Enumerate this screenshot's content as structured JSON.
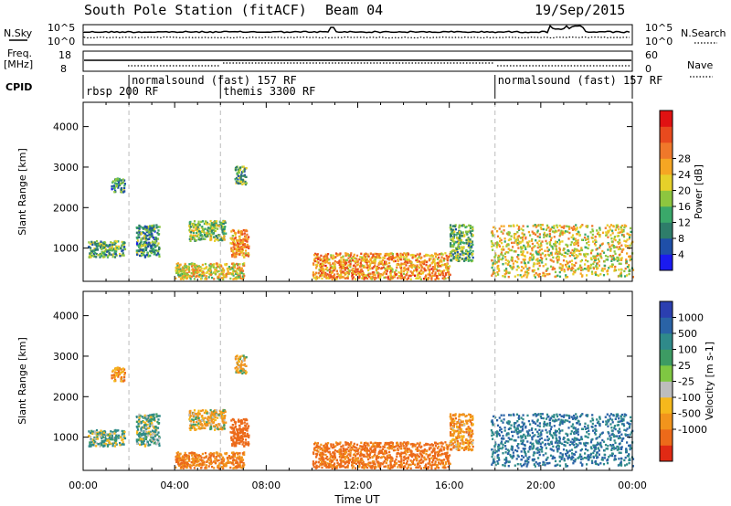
{
  "header": {
    "station": "South Pole Station (fitACF)",
    "beam": "Beam 04",
    "date": "19/Sep/2015"
  },
  "top_strips": {
    "nsky_label": "N.Sky",
    "nsearch_label": "N.Search",
    "nsky_ticks": [
      "10^5",
      "10^0"
    ],
    "nsearch_ticks": [
      "10^5",
      "10^0"
    ],
    "freq_label_line1": "Freq.",
    "freq_label_line2": "[MHz]",
    "freq_ticks": [
      "18",
      "8"
    ],
    "nave_label": "Nave",
    "nave_ticks": [
      "60",
      "0"
    ],
    "cpid_label": "CPID"
  },
  "cpid_segments": [
    {
      "label": "rbsp 200 RF",
      "start_hour": 0.0,
      "row": 2
    },
    {
      "label": "normalsound (fast) 157 RF",
      "start_hour": 2.0,
      "row": 1
    },
    {
      "label": "themis 3300 RF",
      "start_hour": 6.0,
      "row": 2
    },
    {
      "label": "normalsound (fast) 157 RF",
      "start_hour": 18.0,
      "row": 1
    }
  ],
  "axes": {
    "xlabel": "Time UT",
    "xticks": [
      "00:00",
      "04:00",
      "08:00",
      "12:00",
      "16:00",
      "20:00",
      "00:00"
    ],
    "ylabel": "Slant Range [km]",
    "yticks": [
      1000,
      2000,
      3000,
      4000
    ]
  },
  "power_colorbar": {
    "label": "Power [dB]",
    "ticks": [
      "4",
      "8",
      "12",
      "16",
      "20",
      "24",
      "28"
    ],
    "colors": [
      "#1a1af0",
      "#1f4fa8",
      "#2e7d6a",
      "#3aa86a",
      "#8dc63f",
      "#e6d02a",
      "#f5a623",
      "#f0782a",
      "#e84a1e",
      "#e01212"
    ]
  },
  "velocity_colorbar": {
    "label": "Velocity [m s-1]",
    "ticks": [
      "1000",
      "500",
      "100",
      "25",
      "-25",
      "-100",
      "-500",
      "-1000"
    ],
    "colors": [
      "#2b3fb0",
      "#2a63a6",
      "#2f8a8a",
      "#3d9b63",
      "#7fc742",
      "#bdbdbd",
      "#f5b81c",
      "#f2941c",
      "#ec6a1a",
      "#e02a14"
    ]
  },
  "chart_data": [
    {
      "type": "heatmap",
      "title": "South Pole Station (fitACF) Beam 04 19/Sep/2015",
      "xlabel": "Time UT",
      "ylabel": "Slant Range [km]",
      "xlim_hours": [
        0,
        24
      ],
      "ylim_km": [
        180,
        4600
      ],
      "quantity": "Power [dB]",
      "clim": [
        0,
        32
      ],
      "echo_regions": [
        {
          "t0": 0.2,
          "t1": 1.8,
          "r0": 800,
          "r1": 1200,
          "value": 12
        },
        {
          "t0": 1.2,
          "t1": 1.8,
          "r0": 2400,
          "r1": 2750,
          "value": 10
        },
        {
          "t0": 2.3,
          "t1": 3.3,
          "r0": 800,
          "r1": 1600,
          "value": 10
        },
        {
          "t0": 4.6,
          "t1": 6.2,
          "r0": 1200,
          "r1": 1700,
          "value": 14
        },
        {
          "t0": 6.4,
          "t1": 7.2,
          "r0": 800,
          "r1": 1500,
          "value": 22
        },
        {
          "t0": 6.6,
          "t1": 7.1,
          "r0": 2600,
          "r1": 3050,
          "value": 12
        },
        {
          "t0": 4.0,
          "t1": 7.0,
          "r0": 250,
          "r1": 650,
          "value": 18
        },
        {
          "t0": 10.0,
          "t1": 16.0,
          "r0": 250,
          "r1": 900,
          "value": 22
        },
        {
          "t0": 16.0,
          "t1": 17.0,
          "r0": 700,
          "r1": 1600,
          "value": 12
        },
        {
          "t0": 17.8,
          "t1": 24.0,
          "r0": 300,
          "r1": 1600,
          "value": 18
        }
      ]
    },
    {
      "type": "heatmap",
      "title": "South Pole Station (fitACF) Beam 04 19/Sep/2015",
      "xlabel": "Time UT",
      "ylabel": "Slant Range [km]",
      "xlim_hours": [
        0,
        24
      ],
      "ylim_km": [
        180,
        4600
      ],
      "quantity": "Velocity [m s-1]",
      "clim": [
        -1000,
        1000
      ],
      "echo_regions": [
        {
          "t0": 0.2,
          "t1": 1.8,
          "r0": 800,
          "r1": 1200,
          "value": 100
        },
        {
          "t0": 1.2,
          "t1": 1.8,
          "r0": 2400,
          "r1": 2750,
          "value": -200
        },
        {
          "t0": 2.3,
          "t1": 3.3,
          "r0": 800,
          "r1": 1600,
          "value": 100
        },
        {
          "t0": 4.6,
          "t1": 6.2,
          "r0": 1200,
          "r1": 1700,
          "value": -100
        },
        {
          "t0": 6.4,
          "t1": 7.2,
          "r0": 800,
          "r1": 1500,
          "value": -500
        },
        {
          "t0": 6.6,
          "t1": 7.1,
          "r0": 2600,
          "r1": 3050,
          "value": -100
        },
        {
          "t0": 4.0,
          "t1": 7.0,
          "r0": 250,
          "r1": 650,
          "value": -300
        },
        {
          "t0": 10.0,
          "t1": 16.0,
          "r0": 250,
          "r1": 900,
          "value": -400
        },
        {
          "t0": 16.0,
          "t1": 17.0,
          "r0": 700,
          "r1": 1600,
          "value": -200
        },
        {
          "t0": 17.8,
          "t1": 24.0,
          "r0": 300,
          "r1": 1600,
          "value": 300
        }
      ]
    }
  ]
}
